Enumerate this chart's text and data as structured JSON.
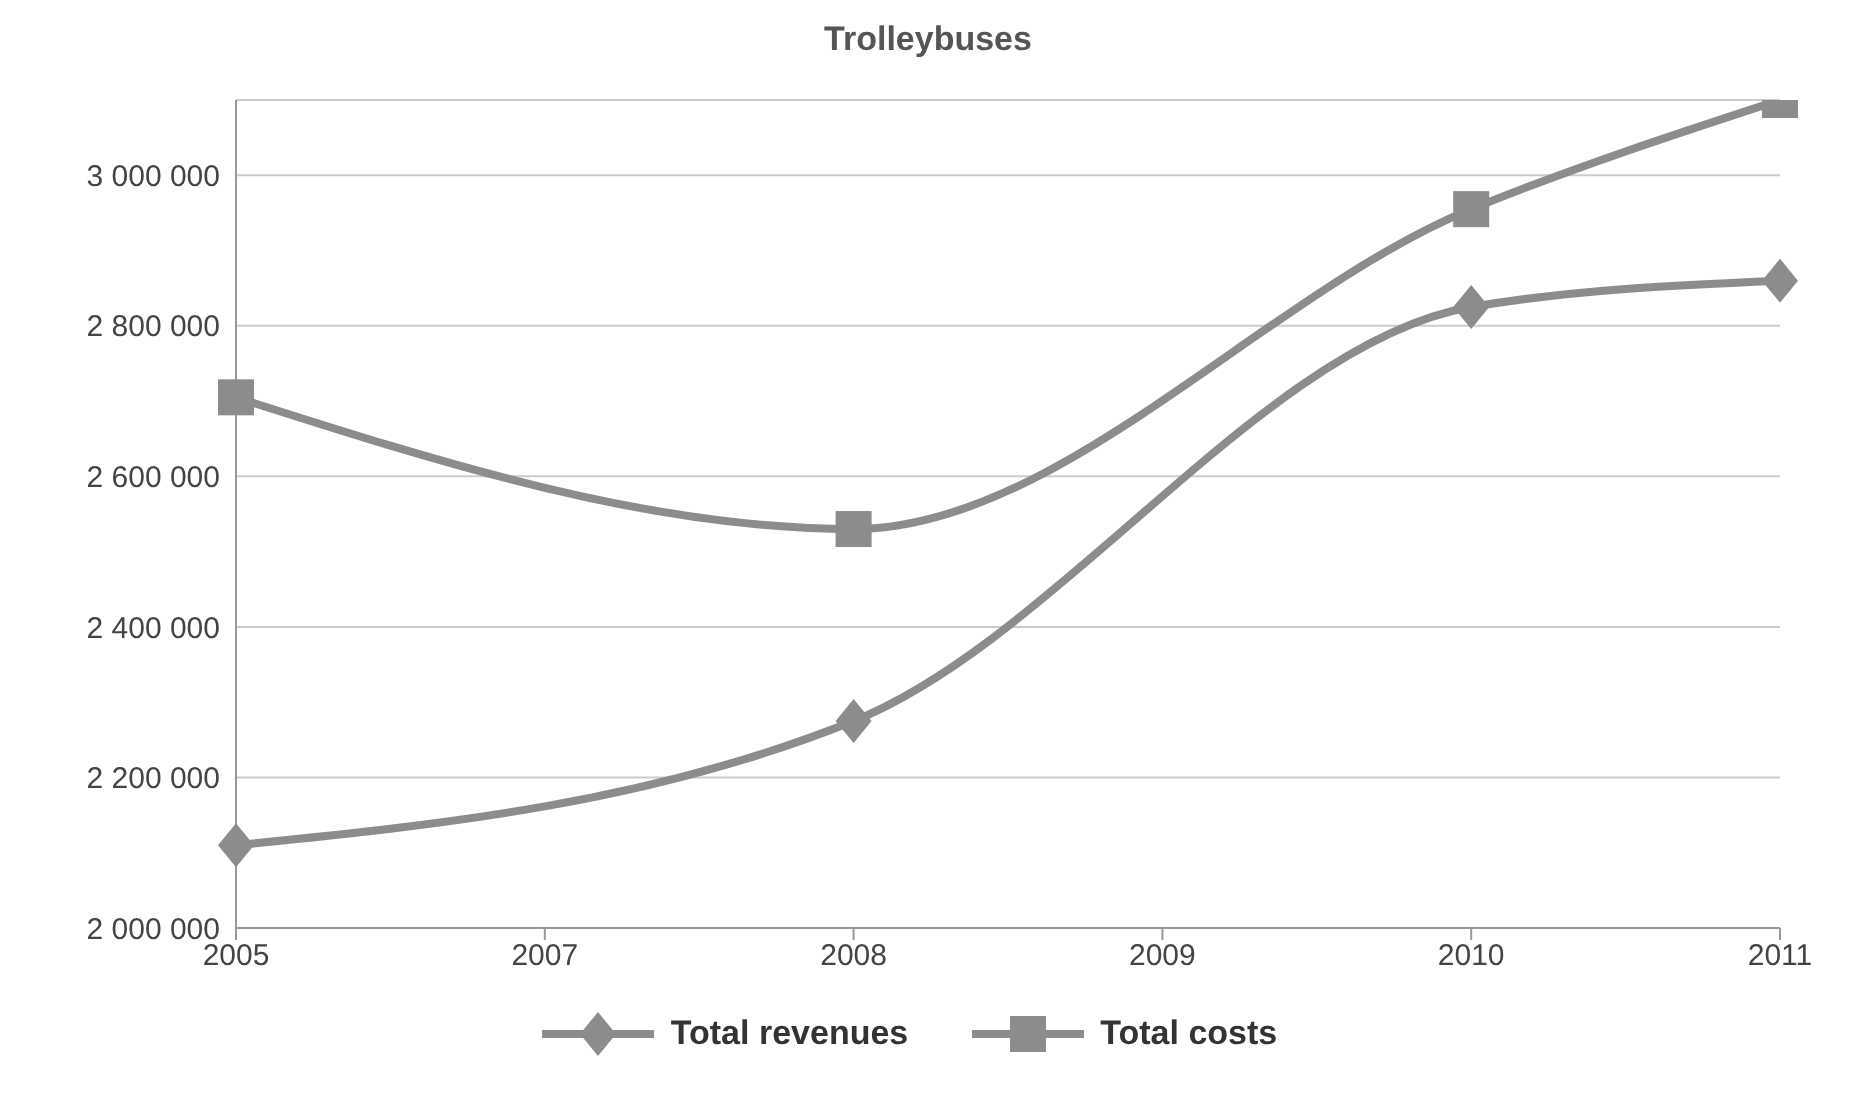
{
  "chart_data": {
    "type": "line",
    "title": "Trolleybuses",
    "categories": [
      "2005",
      "2007",
      "2008",
      "2009",
      "2010",
      "2011"
    ],
    "series": [
      {
        "name": "Total revenues",
        "color": "#8c8c8c",
        "marker": "diamond",
        "values": [
          2110000,
          null,
          2275000,
          null,
          2825000,
          2860000
        ]
      },
      {
        "name": "Total costs",
        "color": "#8c8c8c",
        "marker": "square",
        "values": [
          2705000,
          null,
          2530000,
          null,
          2955000,
          3100000
        ]
      }
    ],
    "ylim": [
      2000000,
      3100000
    ],
    "yticks": [
      {
        "value": 2000000,
        "label": "2 000 000"
      },
      {
        "value": 2200000,
        "label": "2 200 000"
      },
      {
        "value": 2400000,
        "label": "2 400 000"
      },
      {
        "value": 2600000,
        "label": "2 600 000"
      },
      {
        "value": 2800000,
        "label": "2 800 000"
      },
      {
        "value": 3000000,
        "label": "3 000 000"
      }
    ],
    "grid": "y",
    "legend": "bottom"
  }
}
